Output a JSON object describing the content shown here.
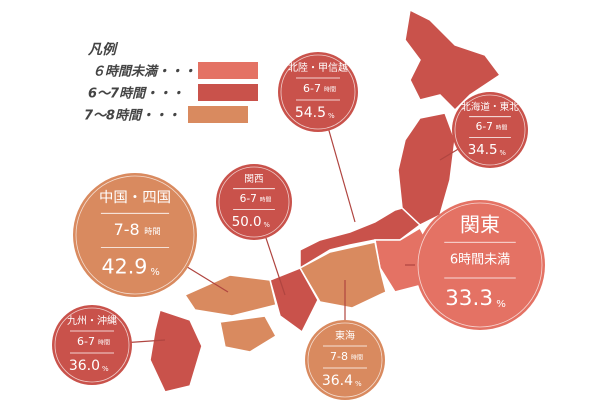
{
  "legend": {
    "title": "凡例",
    "items": [
      {
        "label": "６時間未満・・・"
      },
      {
        "label": "6〜7時間・・・"
      },
      {
        "label": "7〜8時間・・・"
      }
    ]
  },
  "regions": [
    {
      "name": "北陸・甲信越",
      "hours": "6-7",
      "hours_unit": "時間",
      "value": "54.5",
      "unit": "%"
    },
    {
      "name": "北海道・東北",
      "hours": "6-7",
      "hours_unit": "時間",
      "value": "34.5",
      "unit": "%"
    },
    {
      "name": "関西",
      "hours": "6-7",
      "hours_unit": "時間",
      "value": "50.0",
      "unit": "%"
    },
    {
      "name": "中国・四国",
      "hours": "7-8",
      "hours_unit": "時間",
      "value": "42.9",
      "unit": "%"
    },
    {
      "name": "関東",
      "hours": "6時間未満",
      "value": "33.3",
      "unit": "%"
    },
    {
      "name": "九州・沖縄",
      "hours": "6-7",
      "hours_unit": "時間",
      "value": "36.0",
      "unit": "%"
    },
    {
      "name": "東海",
      "hours": "7-8",
      "hours_unit": "時間",
      "value": "36.4",
      "unit": "%"
    }
  ]
}
